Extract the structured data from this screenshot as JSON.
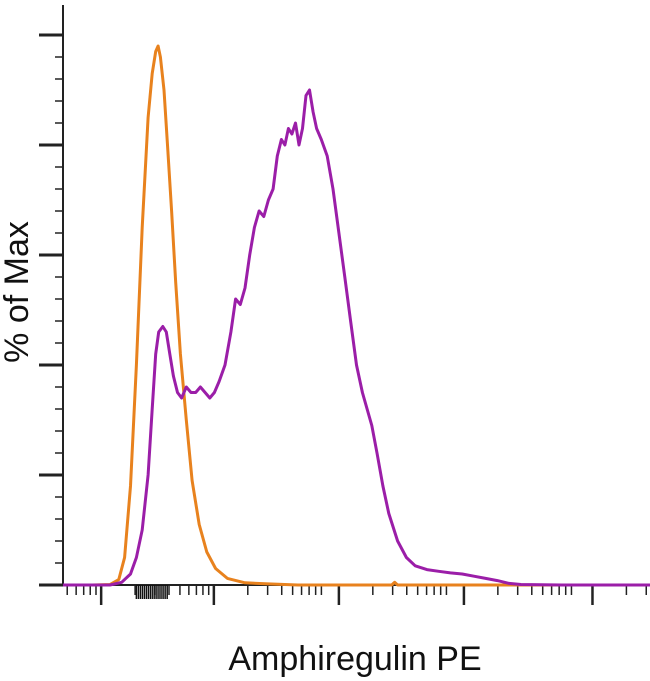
{
  "chart_data": {
    "type": "line",
    "title": "",
    "xlabel": "Amphiregulin PE",
    "ylabel": "% of Max",
    "x_scale": "log",
    "ylim": [
      0,
      100
    ],
    "grid": false,
    "legend": "none",
    "series": [
      {
        "color": "#e8821e",
        "values": [
          [
            0.0,
            0.0
          ],
          [
            0.05,
            0.0
          ],
          [
            0.08,
            0.1
          ],
          [
            0.095,
            1.0
          ],
          [
            0.105,
            5.0
          ],
          [
            0.115,
            18.0
          ],
          [
            0.125,
            40.0
          ],
          [
            0.135,
            65.0
          ],
          [
            0.145,
            85.0
          ],
          [
            0.152,
            93.0
          ],
          [
            0.158,
            97.0
          ],
          [
            0.162,
            98.0
          ],
          [
            0.166,
            96.0
          ],
          [
            0.172,
            90.0
          ],
          [
            0.178,
            80.0
          ],
          [
            0.185,
            68.0
          ],
          [
            0.192,
            55.0
          ],
          [
            0.2,
            42.0
          ],
          [
            0.21,
            30.0
          ],
          [
            0.22,
            19.0
          ],
          [
            0.232,
            11.0
          ],
          [
            0.245,
            6.0
          ],
          [
            0.26,
            3.0
          ],
          [
            0.28,
            1.2
          ],
          [
            0.31,
            0.4
          ],
          [
            0.35,
            0.2
          ],
          [
            0.4,
            0.0
          ],
          [
            0.5,
            0.0
          ],
          [
            0.56,
            0.0
          ],
          [
            0.565,
            0.5
          ],
          [
            0.57,
            0.0
          ],
          [
            0.7,
            0.0
          ],
          [
            1.0,
            0.0
          ]
        ]
      },
      {
        "color": "#9b1ea8",
        "values": [
          [
            0.0,
            0.0
          ],
          [
            0.08,
            0.0
          ],
          [
            0.1,
            0.5
          ],
          [
            0.115,
            2.0
          ],
          [
            0.125,
            5.0
          ],
          [
            0.135,
            10.0
          ],
          [
            0.145,
            20.0
          ],
          [
            0.152,
            32.0
          ],
          [
            0.158,
            42.0
          ],
          [
            0.163,
            46.0
          ],
          [
            0.17,
            47.0
          ],
          [
            0.176,
            46.0
          ],
          [
            0.182,
            42.0
          ],
          [
            0.188,
            38.0
          ],
          [
            0.195,
            35.0
          ],
          [
            0.202,
            34.0
          ],
          [
            0.21,
            36.0
          ],
          [
            0.218,
            35.0
          ],
          [
            0.226,
            35.0
          ],
          [
            0.234,
            36.0
          ],
          [
            0.242,
            35.0
          ],
          [
            0.25,
            34.0
          ],
          [
            0.258,
            35.0
          ],
          [
            0.266,
            37.0
          ],
          [
            0.276,
            40.0
          ],
          [
            0.286,
            46.0
          ],
          [
            0.294,
            52.0
          ],
          [
            0.302,
            51.0
          ],
          [
            0.31,
            54.0
          ],
          [
            0.318,
            60.0
          ],
          [
            0.326,
            65.0
          ],
          [
            0.334,
            68.0
          ],
          [
            0.342,
            67.0
          ],
          [
            0.35,
            70.0
          ],
          [
            0.358,
            72.0
          ],
          [
            0.365,
            78.0
          ],
          [
            0.372,
            81.0
          ],
          [
            0.378,
            80.0
          ],
          [
            0.384,
            83.0
          ],
          [
            0.39,
            82.0
          ],
          [
            0.396,
            84.0
          ],
          [
            0.402,
            80.0
          ],
          [
            0.408,
            83.0
          ],
          [
            0.414,
            89.0
          ],
          [
            0.42,
            90.0
          ],
          [
            0.426,
            86.0
          ],
          [
            0.432,
            83.0
          ],
          [
            0.44,
            81.0
          ],
          [
            0.45,
            78.0
          ],
          [
            0.46,
            72.0
          ],
          [
            0.47,
            64.0
          ],
          [
            0.48,
            56.0
          ],
          [
            0.49,
            48.0
          ],
          [
            0.5,
            40.0
          ],
          [
            0.51,
            35.0
          ],
          [
            0.518,
            32.0
          ],
          [
            0.526,
            29.0
          ],
          [
            0.535,
            24.0
          ],
          [
            0.545,
            18.0
          ],
          [
            0.555,
            13.0
          ],
          [
            0.57,
            8.0
          ],
          [
            0.585,
            5.0
          ],
          [
            0.6,
            3.5
          ],
          [
            0.62,
            2.8
          ],
          [
            0.64,
            2.5
          ],
          [
            0.66,
            2.2
          ],
          [
            0.68,
            2.0
          ],
          [
            0.7,
            1.6
          ],
          [
            0.72,
            1.2
          ],
          [
            0.74,
            0.8
          ],
          [
            0.76,
            0.3
          ],
          [
            0.78,
            0.1
          ],
          [
            0.85,
            0.0
          ],
          [
            1.0,
            0.0
          ]
        ]
      }
    ]
  }
}
